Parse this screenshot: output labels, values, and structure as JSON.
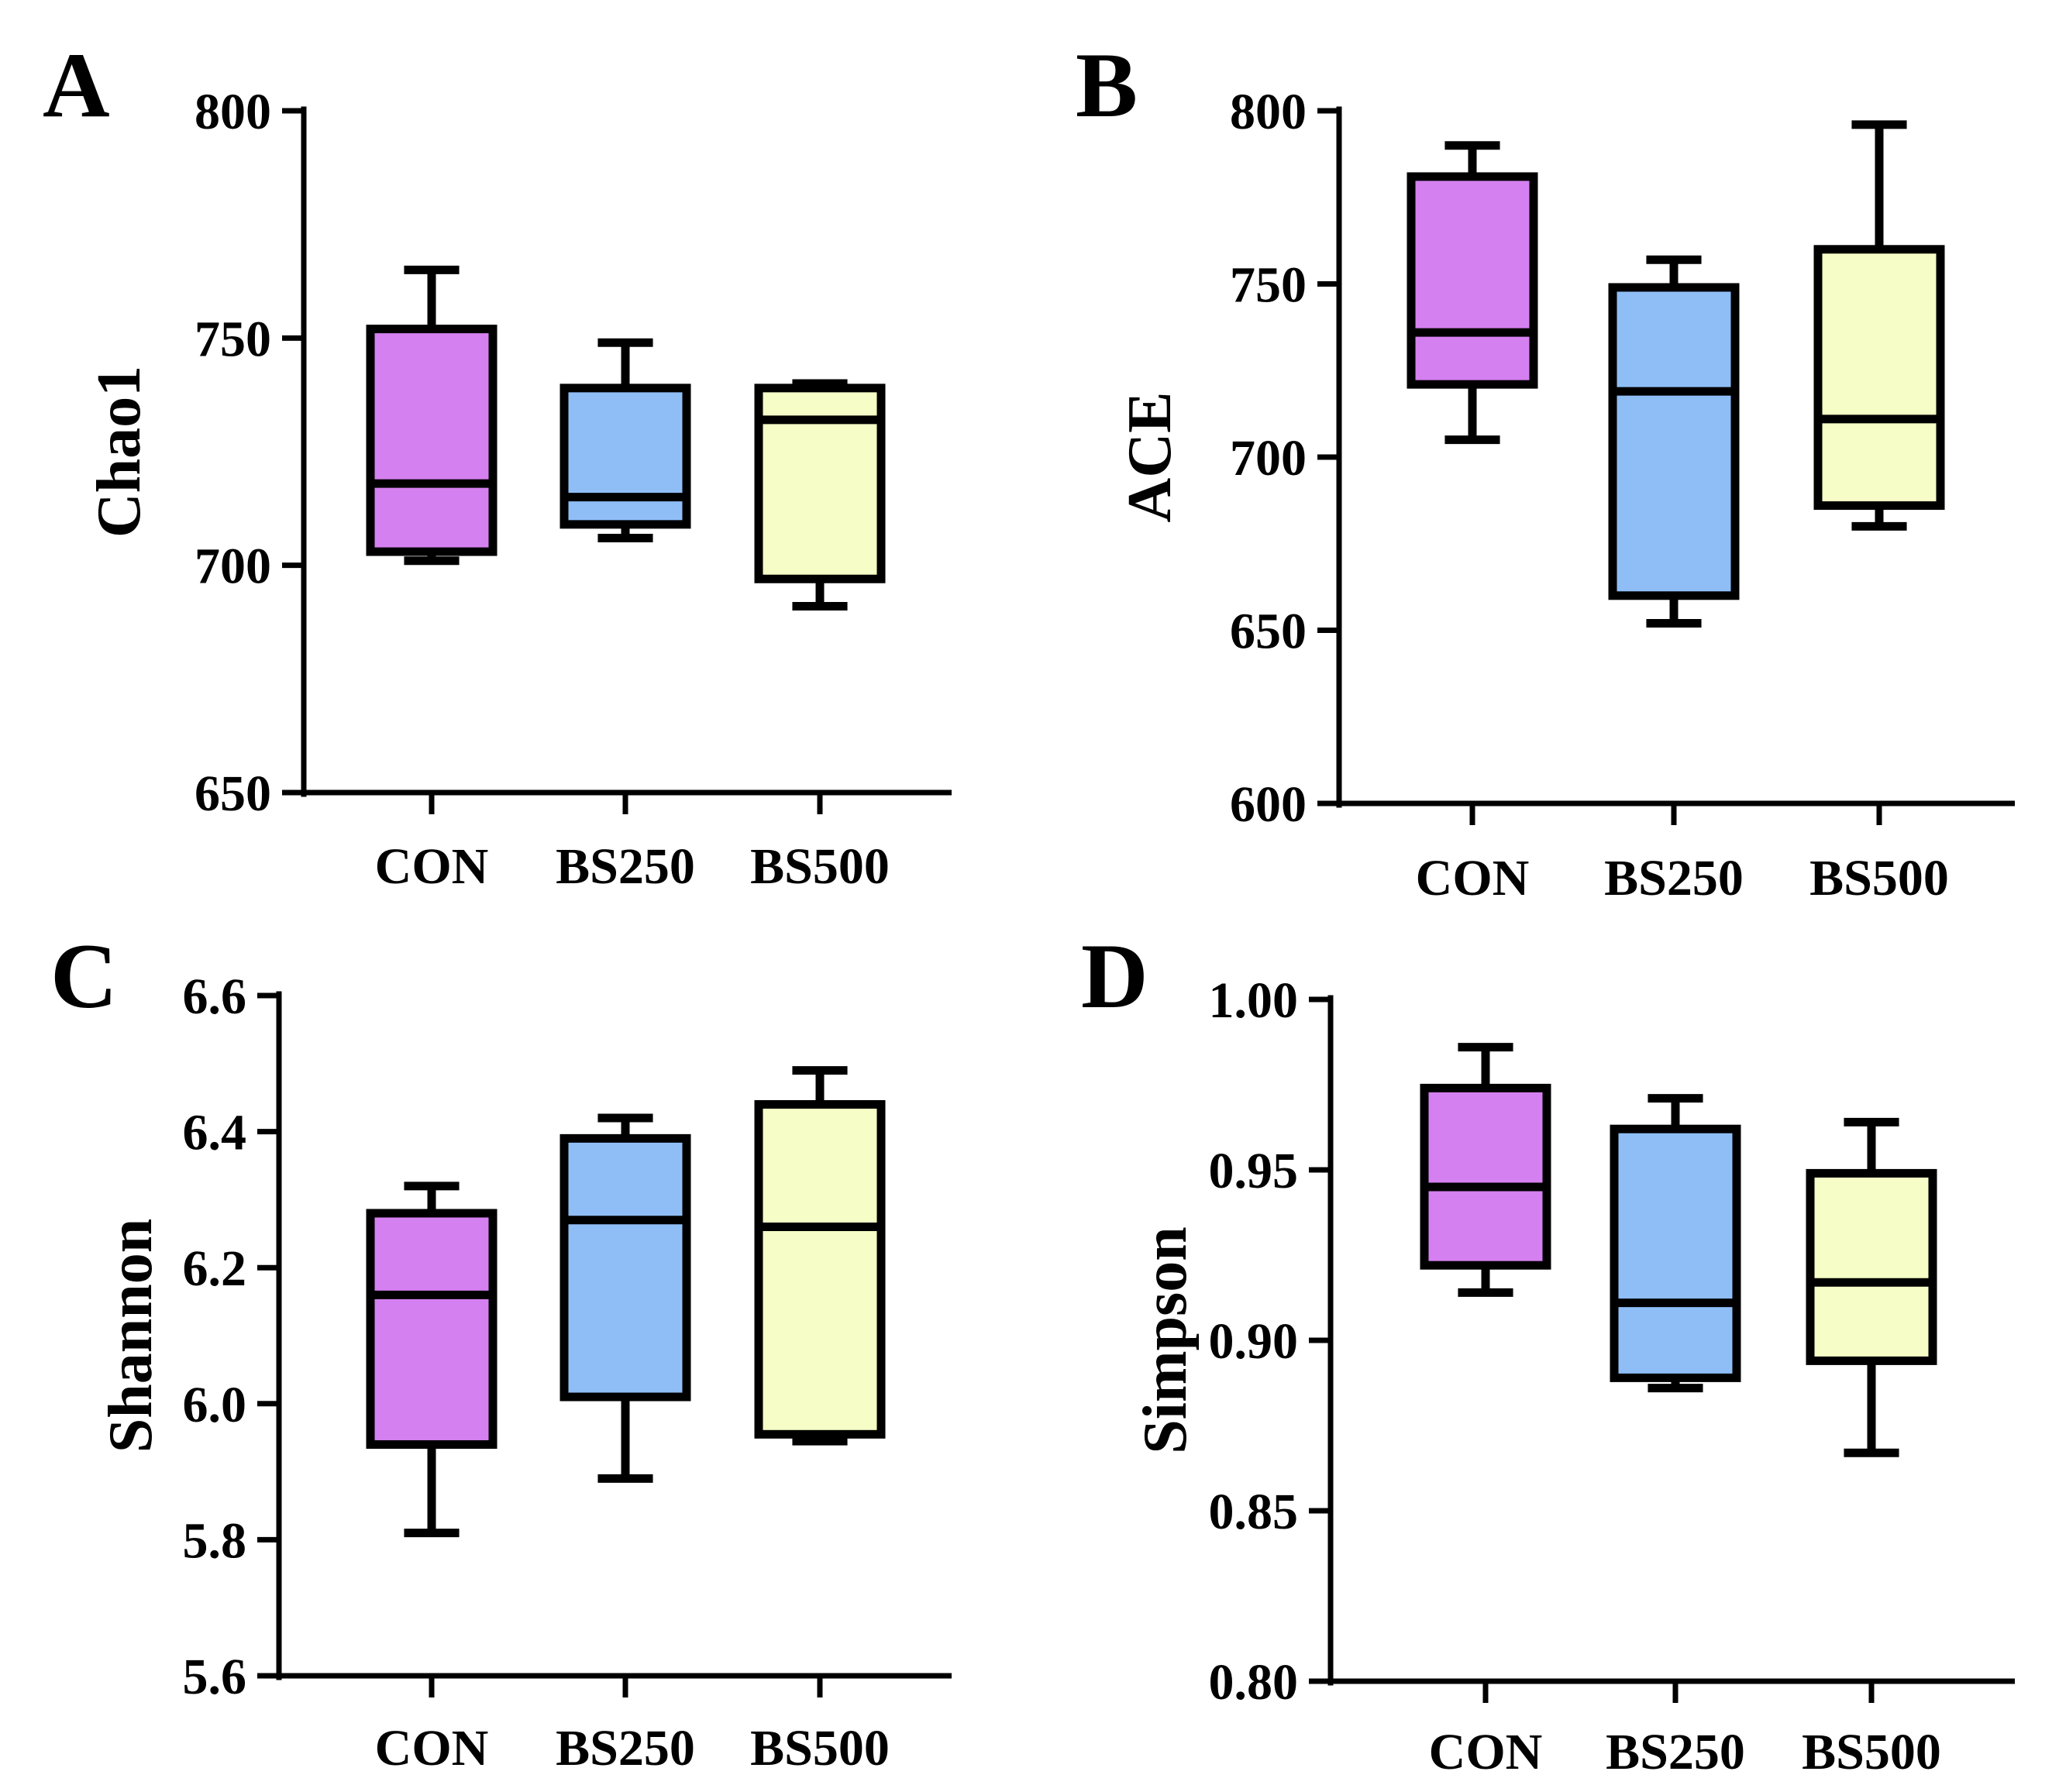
{
  "figure_description": "Alpha diversity indices box plots",
  "colors": {
    "CON": "#d580f0",
    "BS250": "#8fbef7",
    "BS500": "#f6fdc6",
    "stroke": "#000000"
  },
  "chart_data": [
    {
      "type": "box",
      "panel": "A",
      "ylabel": "Chao1",
      "ylim": [
        650,
        800
      ],
      "yticks": [
        650,
        700,
        750,
        800
      ],
      "tick_labels": [
        "650",
        "700",
        "750",
        "800"
      ],
      "categories": [
        "CON",
        "BS250",
        "BS500"
      ],
      "boxes": [
        {
          "name": "CON",
          "min": 701,
          "q1": 703,
          "median": 718,
          "q3": 752,
          "max": 765
        },
        {
          "name": "BS250",
          "min": 706,
          "q1": 709,
          "median": 715,
          "q3": 739,
          "max": 749
        },
        {
          "name": "BS500",
          "min": 691,
          "q1": 697,
          "median": 732,
          "q3": 739,
          "max": 740
        }
      ]
    },
    {
      "type": "box",
      "panel": "B",
      "ylabel": "ACE",
      "ylim": [
        600,
        800
      ],
      "yticks": [
        600,
        650,
        700,
        750,
        800
      ],
      "tick_labels": [
        "600",
        "650",
        "700",
        "750",
        "800"
      ],
      "categories": [
        "CON",
        "BS250",
        "BS500"
      ],
      "boxes": [
        {
          "name": "CON",
          "min": 705,
          "q1": 721,
          "median": 736,
          "q3": 781,
          "max": 790
        },
        {
          "name": "BS250",
          "min": 652,
          "q1": 660,
          "median": 719,
          "q3": 749,
          "max": 757
        },
        {
          "name": "BS500",
          "min": 680,
          "q1": 686,
          "median": 711,
          "q3": 760,
          "max": 796
        }
      ]
    },
    {
      "type": "box",
      "panel": "C",
      "ylabel": "Shannon",
      "ylim": [
        5.6,
        6.6
      ],
      "yticks": [
        5.6,
        5.8,
        6.0,
        6.2,
        6.4,
        6.6
      ],
      "tick_labels": [
        "5.6",
        "5.8",
        "6.0",
        "6.2",
        "6.4",
        "6.6"
      ],
      "categories": [
        "CON",
        "BS250",
        "BS500"
      ],
      "boxes": [
        {
          "name": "CON",
          "min": 5.81,
          "q1": 5.94,
          "median": 6.16,
          "q3": 6.28,
          "max": 6.32
        },
        {
          "name": "BS250",
          "min": 5.89,
          "q1": 6.01,
          "median": 6.27,
          "q3": 6.39,
          "max": 6.42
        },
        {
          "name": "BS500",
          "min": 5.945,
          "q1": 5.955,
          "median": 6.26,
          "q3": 6.44,
          "max": 6.49
        }
      ]
    },
    {
      "type": "box",
      "panel": "D",
      "ylabel": "Simpson",
      "ylim": [
        0.8,
        1.0
      ],
      "yticks": [
        0.8,
        0.85,
        0.9,
        0.95,
        1.0
      ],
      "tick_labels": [
        "0.80",
        "0.85",
        "0.90",
        "0.95",
        "1.00"
      ],
      "categories": [
        "CON",
        "BS250",
        "BS500"
      ],
      "boxes": [
        {
          "name": "CON",
          "min": 0.914,
          "q1": 0.922,
          "median": 0.945,
          "q3": 0.974,
          "max": 0.986
        },
        {
          "name": "BS250",
          "min": 0.886,
          "q1": 0.889,
          "median": 0.911,
          "q3": 0.962,
          "max": 0.971
        },
        {
          "name": "BS500",
          "min": 0.867,
          "q1": 0.894,
          "median": 0.917,
          "q3": 0.949,
          "max": 0.964
        }
      ]
    }
  ]
}
